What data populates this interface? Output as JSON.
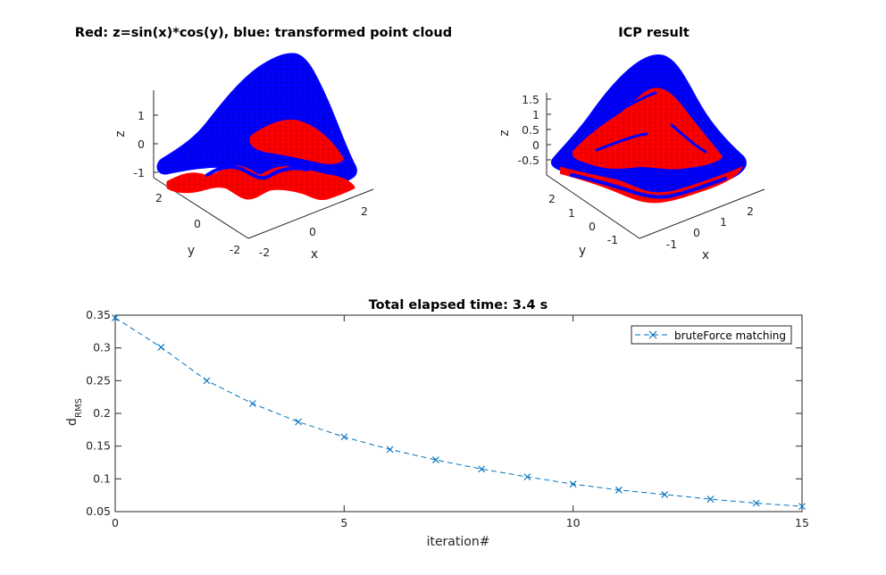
{
  "figure": {
    "subplot1_title": "Red: z=sin(x)*cos(y), blue: transformed point cloud",
    "subplot2_title": "ICP result",
    "subplot3_title": "Total elapsed time: 3.4 s"
  },
  "plot3d_left": {
    "xlabel": "x",
    "ylabel": "y",
    "zlabel": "z",
    "x_ticks": [
      "-2",
      "0",
      "2"
    ],
    "y_ticks": [
      "-2",
      "0",
      "2"
    ],
    "z_ticks": [
      "-1",
      "0",
      "1"
    ],
    "series_colors": {
      "reference": "#ff0000",
      "transformed": "#0000ff"
    }
  },
  "plot3d_right": {
    "xlabel": "x",
    "ylabel": "y",
    "zlabel": "z",
    "x_ticks": [
      "-1",
      "0",
      "1",
      "2"
    ],
    "y_ticks": [
      "-1",
      "0",
      "1",
      "2"
    ],
    "z_ticks": [
      "-0.5",
      "0",
      "0.5",
      "1",
      "1.5"
    ],
    "series_colors": {
      "reference": "#ff0000",
      "registered": "#0000ff"
    }
  },
  "chart_data": {
    "type": "line",
    "title": "Total elapsed time: 3.4 s",
    "xlabel": "iteration#",
    "ylabel_main": "d",
    "ylabel_sub": "RMS",
    "xlim": [
      0,
      15
    ],
    "ylim": [
      0.05,
      0.35
    ],
    "x_ticks": [
      "0",
      "5",
      "10",
      "15"
    ],
    "y_ticks": [
      "0.05",
      "0.1",
      "0.15",
      "0.2",
      "0.25",
      "0.3",
      "0.35"
    ],
    "legend_position": "top-right",
    "line_color": "#0072bd",
    "line_style": "dashed",
    "marker": "x",
    "series": [
      {
        "name": "bruteForce matching",
        "x": [
          0,
          1,
          2,
          3,
          4,
          5,
          6,
          7,
          8,
          9,
          10,
          11,
          12,
          13,
          14,
          15
        ],
        "values": [
          0.346,
          0.301,
          0.25,
          0.215,
          0.187,
          0.164,
          0.145,
          0.129,
          0.115,
          0.103,
          0.092,
          0.083,
          0.076,
          0.069,
          0.063,
          0.058
        ]
      }
    ]
  }
}
